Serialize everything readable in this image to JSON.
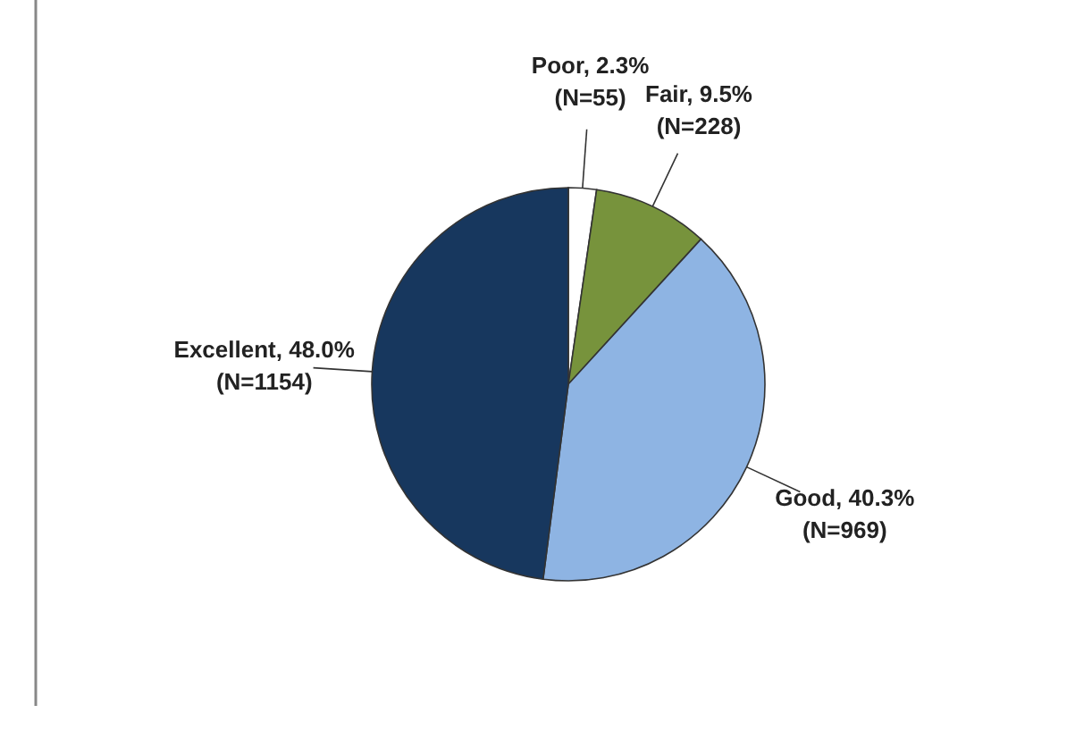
{
  "chart_data": {
    "type": "pie",
    "categories": [
      "Poor",
      "Fair",
      "Good",
      "Excellent"
    ],
    "values": [
      2.3,
      9.5,
      40.3,
      48.0
    ],
    "value_labels": [
      "2.3% (N=55)",
      "9.5% (N=228)",
      "40.3% (N=969)",
      "48.0% (N=1154)"
    ],
    "colors": [
      "#ffffff",
      "#77933c",
      "#8eb4e3",
      "#17375e"
    ]
  }
}
